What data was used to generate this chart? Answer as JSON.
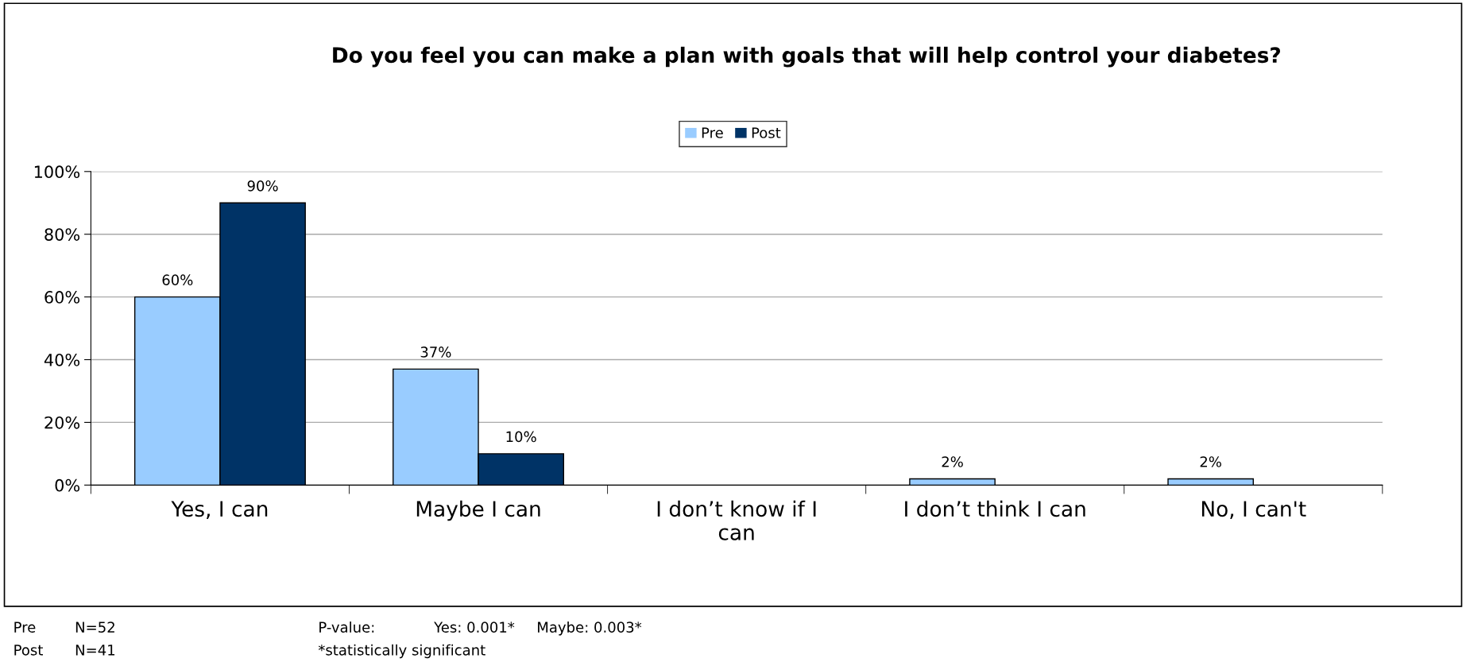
{
  "chart_data": {
    "type": "bar",
    "title": "Do you feel you can make a plan with goals that will help control your diabetes?",
    "categories": [
      "Yes, I can",
      "Maybe I can",
      "I don’t know if I can",
      "I don’t think I can",
      "No, I can't"
    ],
    "series": [
      {
        "name": "Pre",
        "color": "#99ccff",
        "values": [
          60,
          37,
          0,
          2,
          2
        ],
        "value_labels": [
          "60%",
          "37%",
          null,
          "2%",
          "2%"
        ]
      },
      {
        "name": "Post",
        "color": "#003366",
        "values": [
          90,
          10,
          0,
          0,
          0
        ],
        "value_labels": [
          "90%",
          "10%",
          null,
          null,
          null
        ]
      }
    ],
    "ylim": [
      0,
      100
    ],
    "yticks": [
      {
        "value": 0,
        "label": "0%"
      },
      {
        "value": 20,
        "label": "20%"
      },
      {
        "value": 40,
        "label": "40%"
      },
      {
        "value": 60,
        "label": "60%"
      },
      {
        "value": 80,
        "label": "80%"
      },
      {
        "value": 100,
        "label": "100%"
      }
    ],
    "grid": "y",
    "legend": "top",
    "annotations": [
      "Pre",
      "N=52",
      "Post",
      "N=41",
      "P-value:",
      "Yes: 0.001*",
      "Maybe: 0.003*",
      "*statistically significant"
    ]
  }
}
